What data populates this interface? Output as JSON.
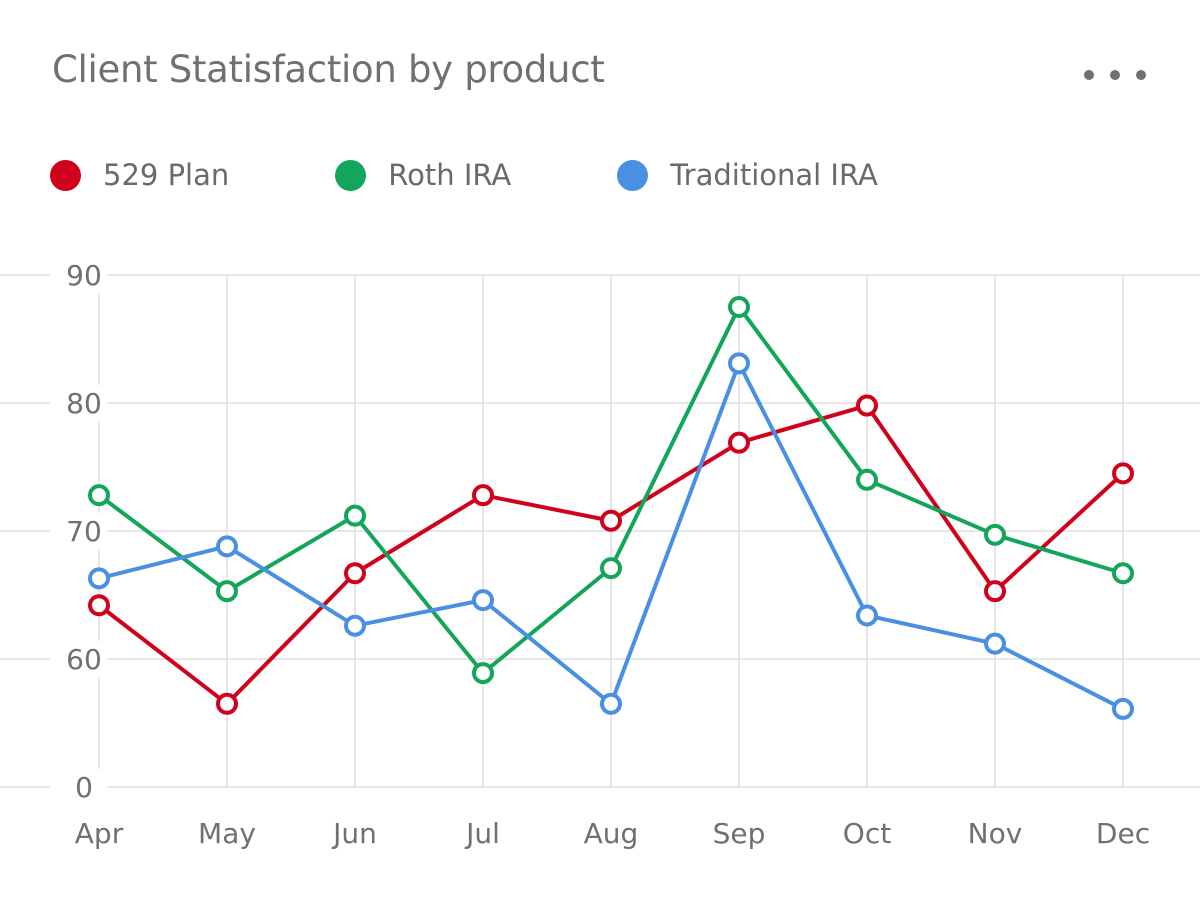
{
  "header": {
    "title": "Client Statisfaction by product",
    "menu_icon": "more-horizontal-icon"
  },
  "colors": {
    "529 Plan": "#d0021b",
    "Roth IRA": "#13a65a",
    "Traditional IRA": "#4a90e2",
    "grid": "#e6e6e6",
    "text": "#707070"
  },
  "chart_data": {
    "type": "line",
    "categories": [
      "Apr",
      "May",
      "Jun",
      "Jul",
      "Aug",
      "Sep",
      "Oct",
      "Nov",
      "Dec"
    ],
    "yticks": [
      0,
      60,
      70,
      80,
      90
    ],
    "ylim": [
      0,
      90
    ],
    "y_axis_note": "broken axis: 0 at bottom, then 60 to 90 evenly spaced",
    "grid": true,
    "legend_position": "top-left",
    "series": [
      {
        "name": "529 Plan",
        "values": [
          64.2,
          56.5,
          66.7,
          72.8,
          70.8,
          76.9,
          79.8,
          65.3,
          74.5
        ]
      },
      {
        "name": "Roth IRA",
        "values": [
          72.8,
          65.3,
          71.2,
          58.9,
          67.1,
          87.5,
          74.0,
          69.7,
          66.7
        ]
      },
      {
        "name": "Traditional IRA",
        "values": [
          66.3,
          68.8,
          62.6,
          64.6,
          56.5,
          83.1,
          63.4,
          61.2,
          56.1
        ]
      }
    ]
  }
}
